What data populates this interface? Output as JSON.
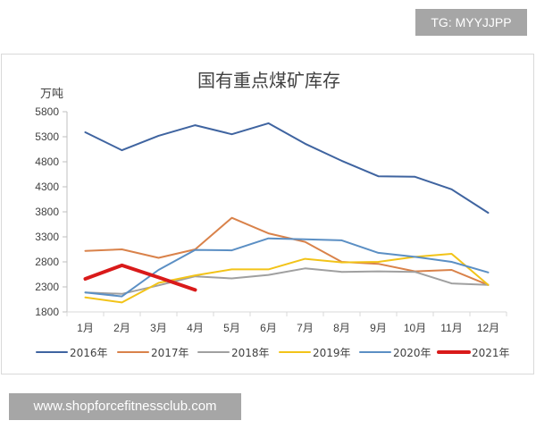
{
  "badges": {
    "top_right": "TG: MYYJJPP",
    "bottom_left": "www.shopforcefitnessclub.com"
  },
  "chart_data": {
    "type": "line",
    "title": "国有重点煤矿库存",
    "xlabel": "",
    "ylabel": "万吨",
    "ylim": [
      1800,
      5800
    ],
    "yticks": [
      1800,
      2300,
      2800,
      3300,
      3800,
      4300,
      4800,
      5300,
      5800
    ],
    "categories": [
      "1月",
      "2月",
      "3月",
      "4月",
      "5月",
      "6月",
      "7月",
      "8月",
      "9月",
      "10月",
      "11月",
      "12月"
    ],
    "grid": false,
    "legend_position": "bottom",
    "series": [
      {
        "name": "2016年",
        "color": "#3f64a0",
        "width": 2,
        "values": [
          5390,
          5030,
          5320,
          5530,
          5350,
          5570,
          5160,
          4820,
          4510,
          4500,
          4250,
          3780
        ]
      },
      {
        "name": "2017年",
        "color": "#d9824a",
        "width": 2,
        "values": [
          3020,
          3050,
          2880,
          3050,
          3680,
          3370,
          3200,
          2800,
          2760,
          2610,
          2640,
          2340
        ]
      },
      {
        "name": "2018年",
        "color": "#a0a0a0",
        "width": 2,
        "values": [
          2190,
          2160,
          2330,
          2510,
          2470,
          2540,
          2670,
          2600,
          2610,
          2600,
          2370,
          2340
        ]
      },
      {
        "name": "2019年",
        "color": "#f2c318",
        "width": 2,
        "values": [
          2090,
          1990,
          2380,
          2530,
          2650,
          2650,
          2860,
          2790,
          2800,
          2900,
          2960,
          2340
        ]
      },
      {
        "name": "2020年",
        "color": "#5b8fc4",
        "width": 2,
        "values": [
          2190,
          2110,
          2640,
          3040,
          3030,
          3270,
          3250,
          3230,
          2980,
          2900,
          2800,
          2590
        ]
      },
      {
        "name": "2021年",
        "color": "#d91a1a",
        "width": 4,
        "values": [
          2460,
          2730,
          2490,
          2240
        ]
      }
    ]
  }
}
